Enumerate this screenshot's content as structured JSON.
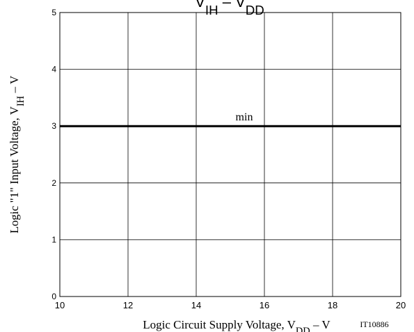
{
  "chart_data": {
    "type": "line",
    "title": [
      "V",
      "IH",
      " – V",
      "DD"
    ],
    "xlabel": [
      "Logic Circuit Supply Voltage, V",
      "DD",
      " – V"
    ],
    "ylabel": [
      "Logic \"1\" Input Voltage, V",
      "IH",
      " – V"
    ],
    "code": "IT10886",
    "x": [
      10,
      20
    ],
    "series": [
      {
        "name": "min",
        "color": "#000000",
        "values": [
          3,
          3
        ]
      }
    ],
    "xlim": [
      10,
      20
    ],
    "xticks": [
      10,
      12,
      14,
      16,
      18,
      20
    ],
    "ylim": [
      0,
      5
    ],
    "yticks": [
      0,
      1,
      2,
      3,
      4,
      5
    ],
    "grid": true
  }
}
